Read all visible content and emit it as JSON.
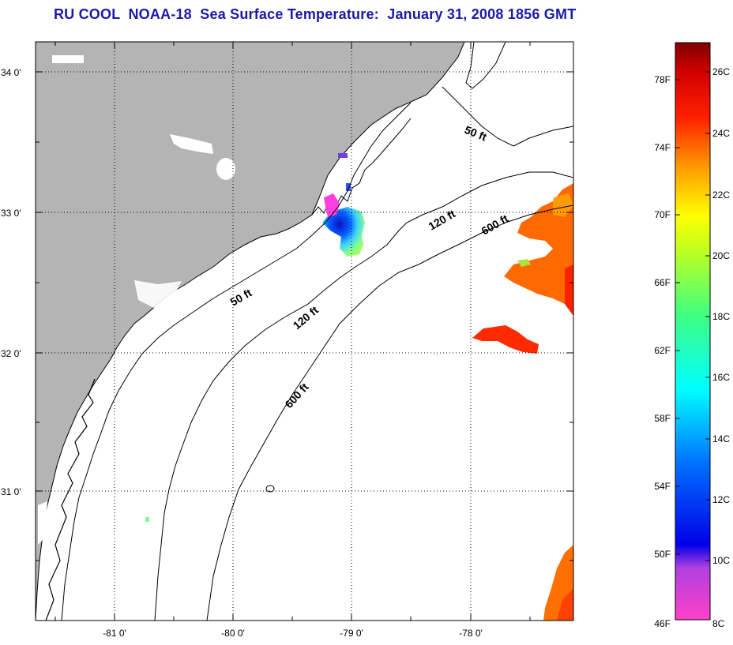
{
  "title": "RU COOL  NOAA-18  Sea Surface Temperature:  January 31, 2008 1856 GMT",
  "map": {
    "lat_labels": [
      "34 0'",
      "33 0'",
      "32 0'",
      "31 0'"
    ],
    "lon_labels": [
      "-81 0'",
      "-80 0'",
      "-79 0'",
      "-78 0'"
    ],
    "contour_labels": {
      "c50_north": "50 ft",
      "c50_south": "50 ft",
      "c120_north": "120 ft",
      "c120_south": "120 ft",
      "c600_north": "600 ft",
      "c600_south": "600 ft"
    },
    "colors": {
      "land": "#b4b4b4",
      "ocean": "#ffffff",
      "coast": "#000000",
      "warm_water": "#ff6a00"
    }
  },
  "colorbar": {
    "fahrenheit": [
      "78F",
      "74F",
      "70F",
      "66F",
      "62F",
      "58F",
      "54F",
      "50F",
      "46F"
    ],
    "celsius": [
      "26C",
      "24C",
      "22C",
      "20C",
      "18C",
      "16C",
      "14C",
      "12C",
      "10C",
      "8C"
    ]
  }
}
